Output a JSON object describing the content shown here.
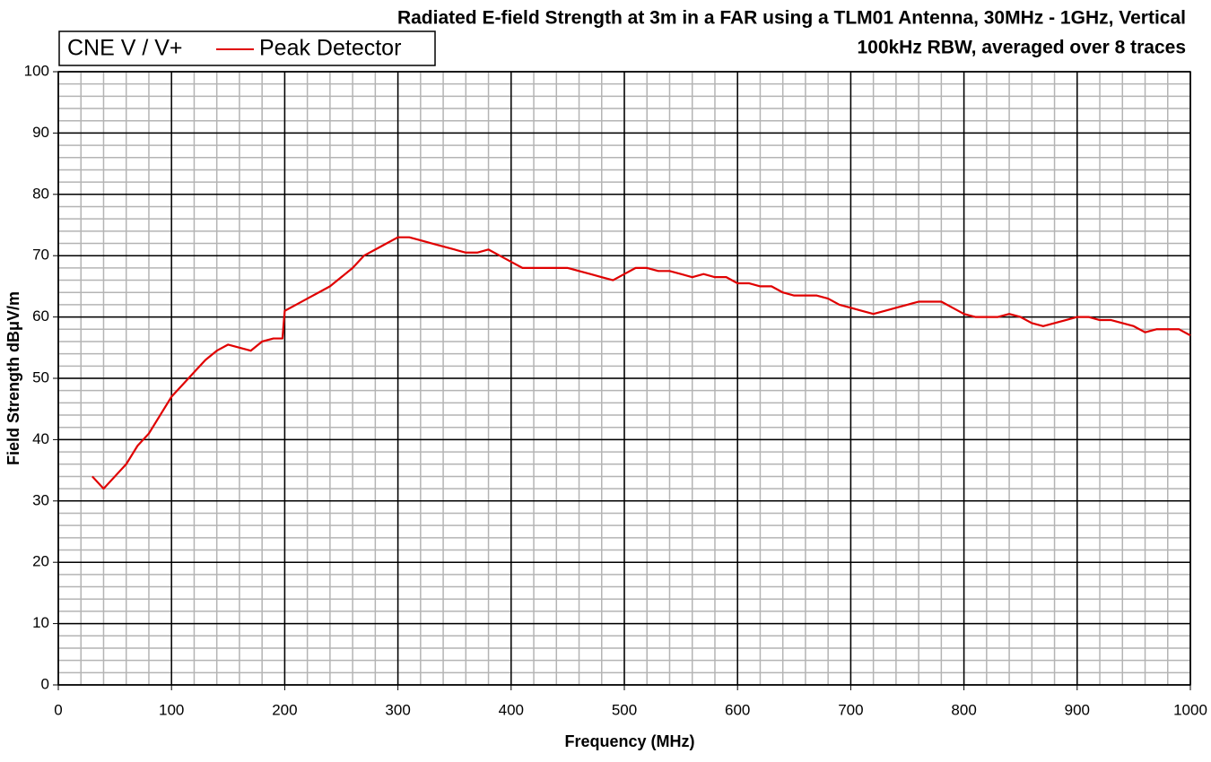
{
  "chart_data": {
    "type": "line",
    "title": [
      "Radiated E-field Strength at 3m in a FAR using a TLM01 Antenna, 30MHz - 1GHz, Vertical",
      "100kHz RBW, averaged over 8 traces"
    ],
    "legend_title": "CNE V / V+",
    "xlabel": "Frequency (MHz)",
    "ylabel": "Field Strength dBμV/m",
    "x": [
      30,
      40,
      50,
      60,
      70,
      80,
      90,
      100,
      110,
      120,
      130,
      140,
      150,
      160,
      170,
      180,
      190,
      198,
      200,
      210,
      220,
      230,
      240,
      250,
      260,
      270,
      280,
      290,
      300,
      310,
      320,
      330,
      340,
      350,
      360,
      370,
      380,
      390,
      400,
      410,
      420,
      430,
      440,
      450,
      460,
      470,
      480,
      490,
      500,
      510,
      520,
      530,
      540,
      550,
      560,
      570,
      580,
      590,
      600,
      610,
      620,
      630,
      640,
      650,
      660,
      670,
      680,
      690,
      700,
      710,
      720,
      730,
      740,
      750,
      760,
      770,
      780,
      790,
      800,
      810,
      820,
      830,
      840,
      850,
      860,
      870,
      880,
      890,
      900,
      910,
      920,
      930,
      940,
      950,
      960,
      970,
      980,
      990,
      1000
    ],
    "series": [
      {
        "name": "Peak Detector",
        "color": "#e00000",
        "values": [
          34,
          32,
          34,
          36,
          39,
          41,
          44,
          47,
          49,
          51,
          53,
          54.5,
          55.5,
          55,
          54.5,
          56,
          56.5,
          56.5,
          61,
          62,
          63,
          64,
          65,
          66.5,
          68,
          70,
          71,
          72,
          73,
          73,
          72.5,
          72,
          71.5,
          71,
          70.5,
          70.5,
          71,
          70,
          69,
          68,
          68,
          68,
          68,
          68,
          67.5,
          67,
          66.5,
          66,
          67,
          68,
          68,
          67.5,
          67.5,
          67,
          66.5,
          67,
          66.5,
          66.5,
          65.5,
          65.5,
          65,
          65,
          64,
          63.5,
          63.5,
          63.5,
          63,
          62,
          61.5,
          61,
          60.5,
          61,
          61.5,
          62,
          62.5,
          62.5,
          62.5,
          61.5,
          60.5,
          60,
          60,
          60,
          60.5,
          60,
          59,
          58.5,
          59,
          59.5,
          60,
          60,
          59.5,
          59.5,
          59,
          58.5,
          57.5,
          58,
          58,
          58,
          57
        ]
      }
    ],
    "xlim": [
      0,
      1000
    ],
    "xticks": [
      0,
      100,
      200,
      300,
      400,
      500,
      600,
      700,
      800,
      900,
      1000
    ],
    "ylim": [
      0,
      100
    ],
    "yticks": [
      0,
      10,
      20,
      30,
      40,
      50,
      60,
      70,
      80,
      90,
      100
    ],
    "grid": true,
    "xminor_step": 20,
    "yminor_step": 2,
    "legend": "upper left"
  }
}
